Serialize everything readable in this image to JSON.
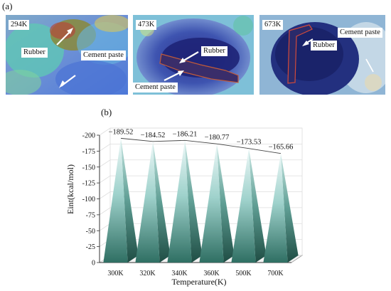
{
  "panel_a": {
    "label": "(a)",
    "images": [
      {
        "temperature": "294K",
        "labels": [
          "Rubber",
          "Cement paste"
        ]
      },
      {
        "temperature": "473K",
        "labels": [
          "Rubber",
          "Cement paste"
        ]
      },
      {
        "temperature": "673K",
        "labels": [
          "Rubber",
          "Cement paste"
        ]
      }
    ]
  },
  "chart_data": {
    "panel_label": "(b)",
    "type": "bar",
    "style": "3D pyramid bars, teal gradient",
    "categories": [
      "300K",
      "320K",
      "340K",
      "360K",
      "500K",
      "700K"
    ],
    "values": [
      -189.52,
      -184.52,
      -186.21,
      -180.77,
      -173.53,
      -165.66
    ],
    "value_labels": [
      "−189.52",
      "−184.52",
      "−186.21",
      "−180.77",
      "−173.53",
      "−165.66"
    ],
    "xlabel": "Temperature(K)",
    "ylabel": "Eint(kcal/mol)",
    "yticks": [
      "-200",
      "-175",
      "-150",
      "-125",
      "-100",
      "-75",
      "-50",
      "-25",
      "0"
    ],
    "ylim": [
      -200,
      0
    ],
    "y_axis_inverted": true,
    "grid": true,
    "trend_line": true,
    "colors": {
      "bar_top": "#e8f6f6",
      "bar_mid": "#8cc6c0",
      "bar_bottom": "#2e6e62",
      "grid": "#dddddd"
    }
  }
}
